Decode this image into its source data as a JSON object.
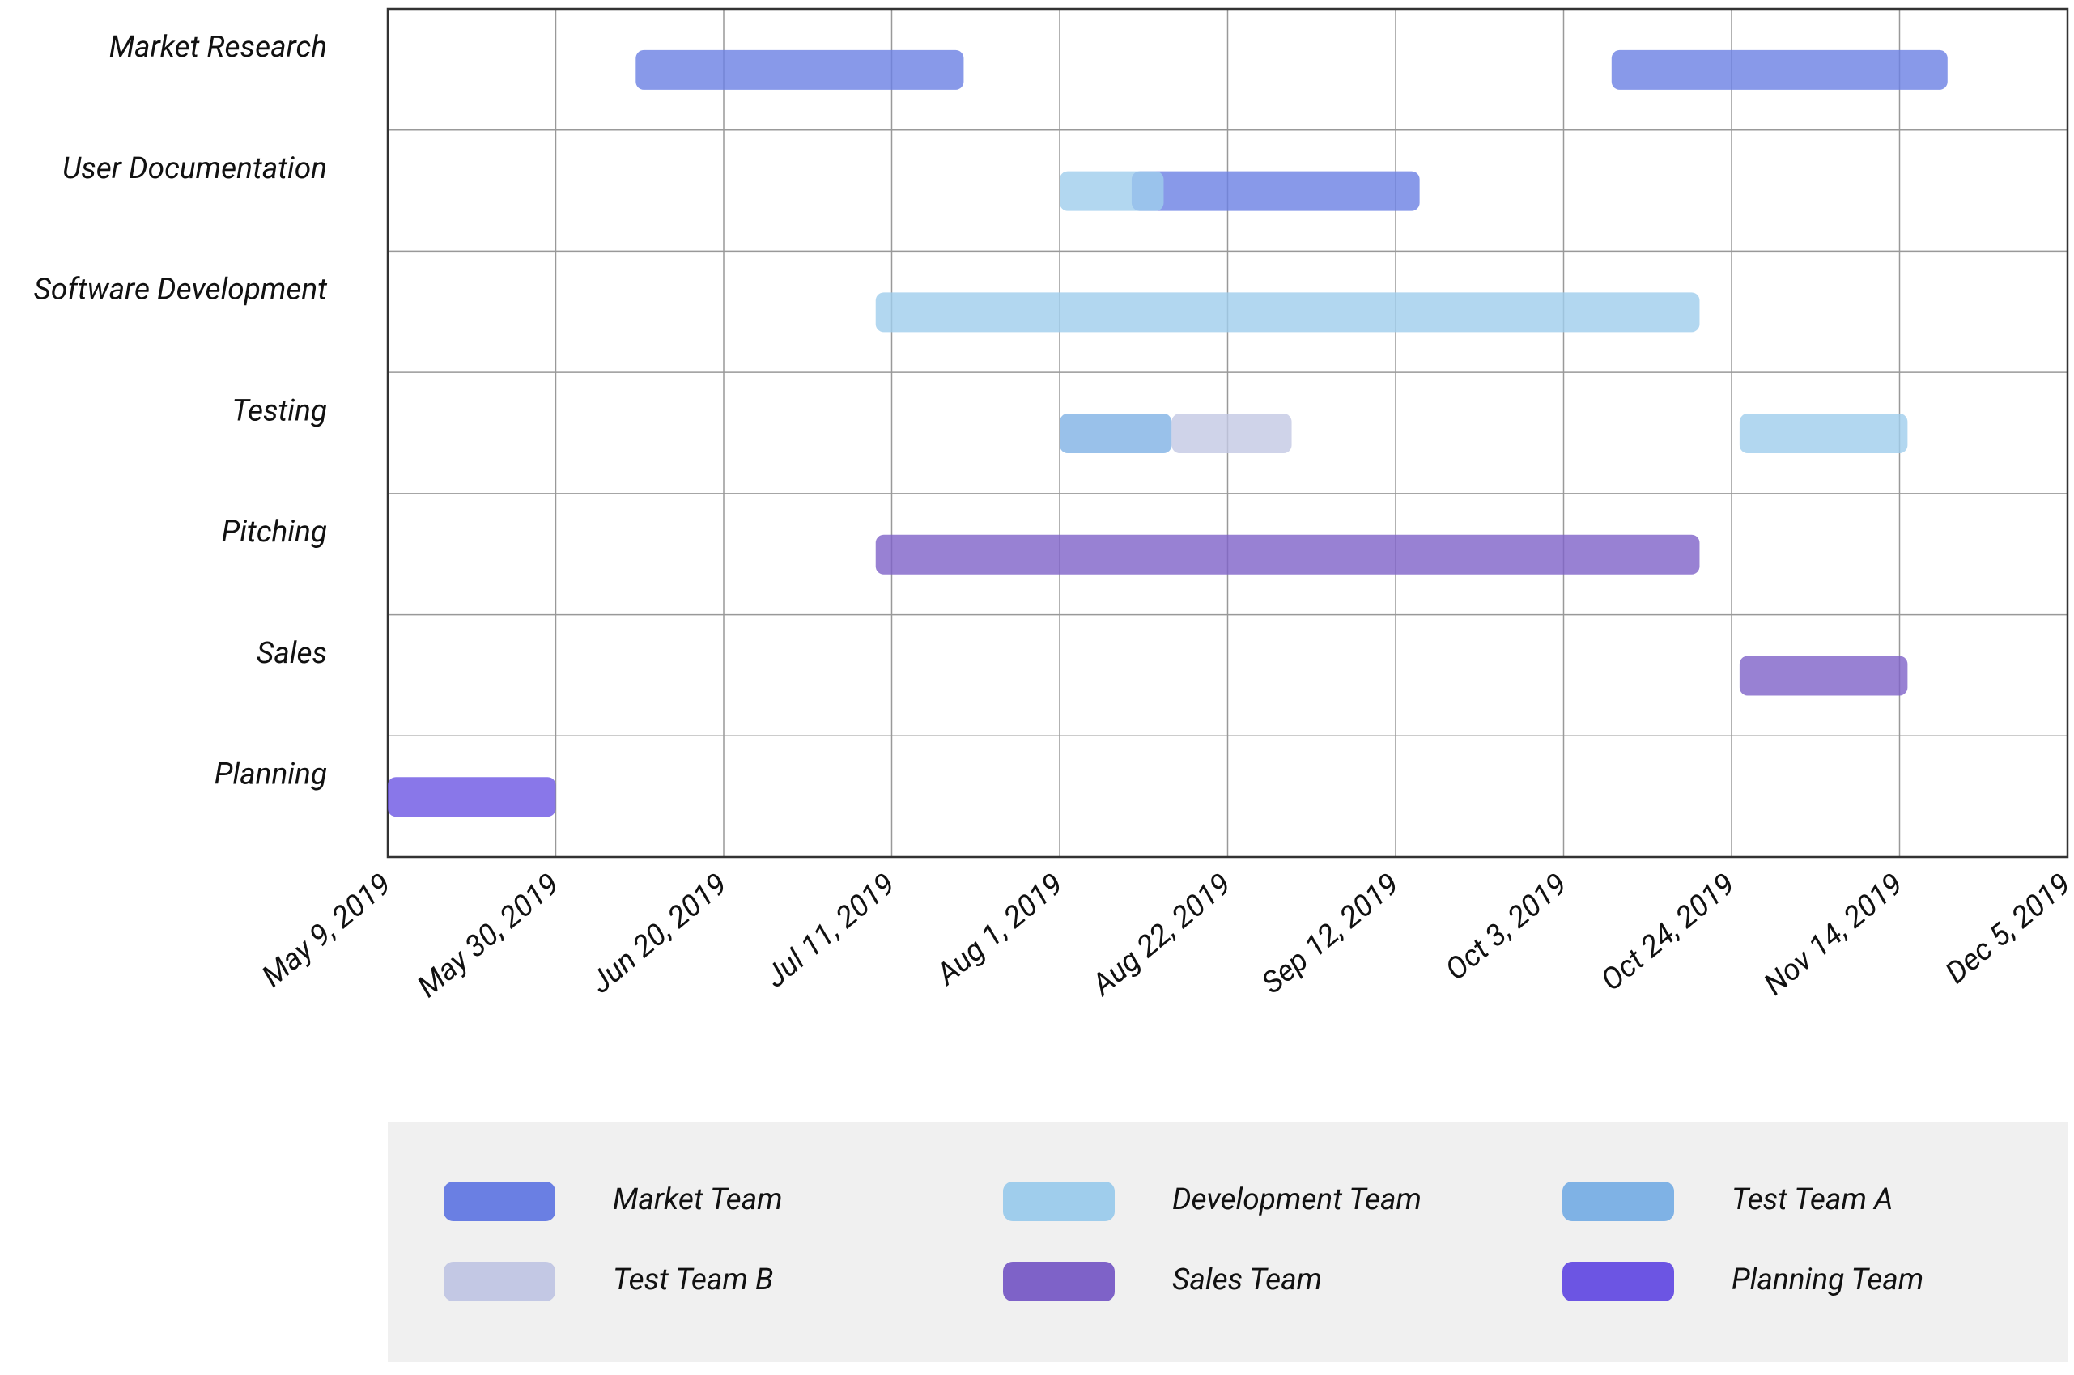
{
  "chart_data": {
    "type": "gantt",
    "categories": [
      "Market Research",
      "User Documentation",
      "Software Development",
      "Testing",
      "Pitching",
      "Sales",
      "Planning"
    ],
    "xlim": [
      "2019-05-09",
      "2019-12-05"
    ],
    "xticks": [
      {
        "value": "2019-05-09",
        "label": "May 9, 2019"
      },
      {
        "value": "2019-05-30",
        "label": "May 30, 2019"
      },
      {
        "value": "2019-06-20",
        "label": "Jun 20, 2019"
      },
      {
        "value": "2019-07-11",
        "label": "Jul 11, 2019"
      },
      {
        "value": "2019-08-01",
        "label": "Aug 1, 2019"
      },
      {
        "value": "2019-08-22",
        "label": "Aug 22, 2019"
      },
      {
        "value": "2019-09-12",
        "label": "Sep 12, 2019"
      },
      {
        "value": "2019-10-03",
        "label": "Oct 3, 2019"
      },
      {
        "value": "2019-10-24",
        "label": "Oct 24, 2019"
      },
      {
        "value": "2019-11-14",
        "label": "Nov 14, 2019"
      },
      {
        "value": "2019-12-05",
        "label": "Dec 5, 2019"
      }
    ],
    "grid": true,
    "series": [
      {
        "name": "Market Team",
        "color": "#6a7fe3",
        "values": [
          {
            "category": "Market Research",
            "start": "2019-06-09",
            "end": "2019-07-20"
          },
          {
            "category": "Market Research",
            "start": "2019-10-09",
            "end": "2019-11-20"
          },
          {
            "category": "User Documentation",
            "start": "2019-08-10",
            "end": "2019-09-15"
          }
        ]
      },
      {
        "name": "Development Team",
        "color": "#9fcdec",
        "values": [
          {
            "category": "User Documentation",
            "start": "2019-08-01",
            "end": "2019-08-14"
          },
          {
            "category": "Software Development",
            "start": "2019-07-09",
            "end": "2019-10-20"
          },
          {
            "category": "Testing",
            "start": "2019-10-25",
            "end": "2019-11-15"
          }
        ]
      },
      {
        "name": "Test Team A",
        "color": "#7fb2e5",
        "values": [
          {
            "category": "Testing",
            "start": "2019-08-01",
            "end": "2019-08-15"
          }
        ]
      },
      {
        "name": "Test Team B",
        "color": "#c3c8e4",
        "values": [
          {
            "category": "Testing",
            "start": "2019-08-15",
            "end": "2019-08-30"
          }
        ]
      },
      {
        "name": "Sales Team",
        "color": "#7e62c8",
        "values": [
          {
            "category": "Pitching",
            "start": "2019-07-09",
            "end": "2019-10-20"
          },
          {
            "category": "Sales",
            "start": "2019-10-25",
            "end": "2019-11-15"
          }
        ]
      },
      {
        "name": "Planning Team",
        "color": "#6c55e3",
        "values": [
          {
            "category": "Planning",
            "start": "2019-05-09",
            "end": "2019-05-30"
          }
        ]
      }
    ]
  }
}
